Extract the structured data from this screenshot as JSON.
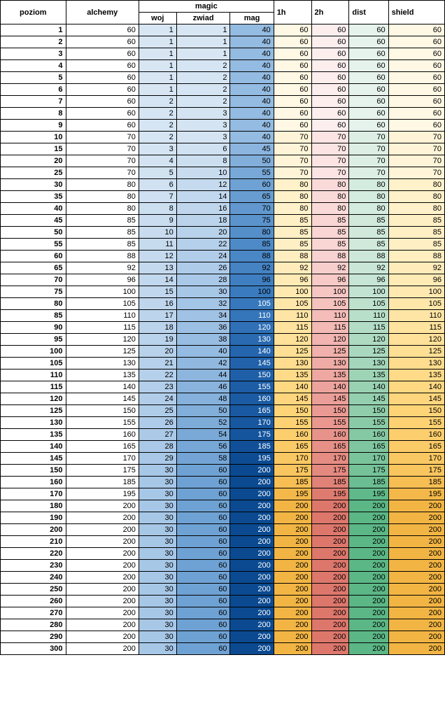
{
  "headers": {
    "poziom": "poziom",
    "alchemy": "alchemy",
    "magic": "magic",
    "woj": "woj",
    "zwiad": "zwiad",
    "mag": "mag",
    "h1": "1h",
    "h2": "2h",
    "dist": "dist",
    "shield": "shield"
  },
  "col_widths": {
    "poziom": 70,
    "alchemy": 70,
    "woj": 70,
    "zwiad": 70,
    "mag": 70,
    "h1": 70,
    "h2": 70,
    "dist": 70,
    "shield": 70
  },
  "magic_color_stops": [
    {
      "v": 1,
      "c": "#d8e6f3"
    },
    {
      "v": 30,
      "c": "#a7c7e7"
    },
    {
      "v": 60,
      "c": "#6fa2d4"
    },
    {
      "v": 100,
      "c": "#3a7bbf"
    },
    {
      "v": 150,
      "c": "#1f5fa8"
    },
    {
      "v": 200,
      "c": "#0b4a91"
    }
  ],
  "h1_color_stops": [
    {
      "v": 60,
      "c": "#fff8e4"
    },
    {
      "v": 100,
      "c": "#ffe9b0"
    },
    {
      "v": 150,
      "c": "#ffd477"
    },
    {
      "v": 200,
      "c": "#f2b544"
    }
  ],
  "h2_color_stops": [
    {
      "v": 60,
      "c": "#fdeeee"
    },
    {
      "v": 100,
      "c": "#f6c6c3"
    },
    {
      "v": 150,
      "c": "#ea9a93"
    },
    {
      "v": 200,
      "c": "#dd776c"
    }
  ],
  "dist_color_stops": [
    {
      "v": 60,
      "c": "#e6f3ec"
    },
    {
      "v": 100,
      "c": "#c2e3d1"
    },
    {
      "v": 150,
      "c": "#8fcdab"
    },
    {
      "v": 200,
      "c": "#5bb786"
    }
  ],
  "shield_color_stops": [
    {
      "v": 60,
      "c": "#fff8e4"
    },
    {
      "v": 100,
      "c": "#ffe9b0"
    },
    {
      "v": 150,
      "c": "#ffd477"
    },
    {
      "v": 200,
      "c": "#f2b544"
    }
  ],
  "rows": [
    {
      "poziom": 1,
      "alchemy": 60,
      "woj": 1,
      "zwiad": 1,
      "mag": 40,
      "h1": 60,
      "h2": 60,
      "dist": 60,
      "shield": 60
    },
    {
      "poziom": 2,
      "alchemy": 60,
      "woj": 1,
      "zwiad": 1,
      "mag": 40,
      "h1": 60,
      "h2": 60,
      "dist": 60,
      "shield": 60
    },
    {
      "poziom": 3,
      "alchemy": 60,
      "woj": 1,
      "zwiad": 1,
      "mag": 40,
      "h1": 60,
      "h2": 60,
      "dist": 60,
      "shield": 60
    },
    {
      "poziom": 4,
      "alchemy": 60,
      "woj": 1,
      "zwiad": 2,
      "mag": 40,
      "h1": 60,
      "h2": 60,
      "dist": 60,
      "shield": 60
    },
    {
      "poziom": 5,
      "alchemy": 60,
      "woj": 1,
      "zwiad": 2,
      "mag": 40,
      "h1": 60,
      "h2": 60,
      "dist": 60,
      "shield": 60
    },
    {
      "poziom": 6,
      "alchemy": 60,
      "woj": 1,
      "zwiad": 2,
      "mag": 40,
      "h1": 60,
      "h2": 60,
      "dist": 60,
      "shield": 60
    },
    {
      "poziom": 7,
      "alchemy": 60,
      "woj": 2,
      "zwiad": 2,
      "mag": 40,
      "h1": 60,
      "h2": 60,
      "dist": 60,
      "shield": 60
    },
    {
      "poziom": 8,
      "alchemy": 60,
      "woj": 2,
      "zwiad": 3,
      "mag": 40,
      "h1": 60,
      "h2": 60,
      "dist": 60,
      "shield": 60
    },
    {
      "poziom": 9,
      "alchemy": 60,
      "woj": 2,
      "zwiad": 3,
      "mag": 40,
      "h1": 60,
      "h2": 60,
      "dist": 60,
      "shield": 60
    },
    {
      "poziom": 10,
      "alchemy": 70,
      "woj": 2,
      "zwiad": 3,
      "mag": 40,
      "h1": 70,
      "h2": 70,
      "dist": 70,
      "shield": 70
    },
    {
      "poziom": 15,
      "alchemy": 70,
      "woj": 3,
      "zwiad": 6,
      "mag": 45,
      "h1": 70,
      "h2": 70,
      "dist": 70,
      "shield": 70
    },
    {
      "poziom": 20,
      "alchemy": 70,
      "woj": 4,
      "zwiad": 8,
      "mag": 50,
      "h1": 70,
      "h2": 70,
      "dist": 70,
      "shield": 70
    },
    {
      "poziom": 25,
      "alchemy": 70,
      "woj": 5,
      "zwiad": 10,
      "mag": 55,
      "h1": 70,
      "h2": 70,
      "dist": 70,
      "shield": 70
    },
    {
      "poziom": 30,
      "alchemy": 80,
      "woj": 6,
      "zwiad": 12,
      "mag": 60,
      "h1": 80,
      "h2": 80,
      "dist": 80,
      "shield": 80
    },
    {
      "poziom": 35,
      "alchemy": 80,
      "woj": 7,
      "zwiad": 14,
      "mag": 65,
      "h1": 80,
      "h2": 80,
      "dist": 80,
      "shield": 80
    },
    {
      "poziom": 40,
      "alchemy": 80,
      "woj": 8,
      "zwiad": 16,
      "mag": 70,
      "h1": 80,
      "h2": 80,
      "dist": 80,
      "shield": 80
    },
    {
      "poziom": 45,
      "alchemy": 85,
      "woj": 9,
      "zwiad": 18,
      "mag": 75,
      "h1": 85,
      "h2": 85,
      "dist": 85,
      "shield": 85
    },
    {
      "poziom": 50,
      "alchemy": 85,
      "woj": 10,
      "zwiad": 20,
      "mag": 80,
      "h1": 85,
      "h2": 85,
      "dist": 85,
      "shield": 85
    },
    {
      "poziom": 55,
      "alchemy": 85,
      "woj": 11,
      "zwiad": 22,
      "mag": 85,
      "h1": 85,
      "h2": 85,
      "dist": 85,
      "shield": 85
    },
    {
      "poziom": 60,
      "alchemy": 88,
      "woj": 12,
      "zwiad": 24,
      "mag": 88,
      "h1": 88,
      "h2": 88,
      "dist": 88,
      "shield": 88
    },
    {
      "poziom": 65,
      "alchemy": 92,
      "woj": 13,
      "zwiad": 26,
      "mag": 92,
      "h1": 92,
      "h2": 92,
      "dist": 92,
      "shield": 92
    },
    {
      "poziom": 70,
      "alchemy": 96,
      "woj": 14,
      "zwiad": 28,
      "mag": 96,
      "h1": 96,
      "h2": 96,
      "dist": 96,
      "shield": 96
    },
    {
      "poziom": 75,
      "alchemy": 100,
      "woj": 15,
      "zwiad": 30,
      "mag": 100,
      "h1": 100,
      "h2": 100,
      "dist": 100,
      "shield": 100
    },
    {
      "poziom": 80,
      "alchemy": 105,
      "woj": 16,
      "zwiad": 32,
      "mag": 105,
      "h1": 105,
      "h2": 105,
      "dist": 105,
      "shield": 105
    },
    {
      "poziom": 85,
      "alchemy": 110,
      "woj": 17,
      "zwiad": 34,
      "mag": 110,
      "h1": 110,
      "h2": 110,
      "dist": 110,
      "shield": 110
    },
    {
      "poziom": 90,
      "alchemy": 115,
      "woj": 18,
      "zwiad": 36,
      "mag": 120,
      "h1": 115,
      "h2": 115,
      "dist": 115,
      "shield": 115
    },
    {
      "poziom": 95,
      "alchemy": 120,
      "woj": 19,
      "zwiad": 38,
      "mag": 130,
      "h1": 120,
      "h2": 120,
      "dist": 120,
      "shield": 120
    },
    {
      "poziom": 100,
      "alchemy": 125,
      "woj": 20,
      "zwiad": 40,
      "mag": 140,
      "h1": 125,
      "h2": 125,
      "dist": 125,
      "shield": 125
    },
    {
      "poziom": 105,
      "alchemy": 130,
      "woj": 21,
      "zwiad": 42,
      "mag": 145,
      "h1": 130,
      "h2": 130,
      "dist": 130,
      "shield": 130
    },
    {
      "poziom": 110,
      "alchemy": 135,
      "woj": 22,
      "zwiad": 44,
      "mag": 150,
      "h1": 135,
      "h2": 135,
      "dist": 135,
      "shield": 135
    },
    {
      "poziom": 115,
      "alchemy": 140,
      "woj": 23,
      "zwiad": 46,
      "mag": 155,
      "h1": 140,
      "h2": 140,
      "dist": 140,
      "shield": 140
    },
    {
      "poziom": 120,
      "alchemy": 145,
      "woj": 24,
      "zwiad": 48,
      "mag": 160,
      "h1": 145,
      "h2": 145,
      "dist": 145,
      "shield": 145
    },
    {
      "poziom": 125,
      "alchemy": 150,
      "woj": 25,
      "zwiad": 50,
      "mag": 165,
      "h1": 150,
      "h2": 150,
      "dist": 150,
      "shield": 150
    },
    {
      "poziom": 130,
      "alchemy": 155,
      "woj": 26,
      "zwiad": 52,
      "mag": 170,
      "h1": 155,
      "h2": 155,
      "dist": 155,
      "shield": 155
    },
    {
      "poziom": 135,
      "alchemy": 160,
      "woj": 27,
      "zwiad": 54,
      "mag": 175,
      "h1": 160,
      "h2": 160,
      "dist": 160,
      "shield": 160
    },
    {
      "poziom": 140,
      "alchemy": 165,
      "woj": 28,
      "zwiad": 56,
      "mag": 185,
      "h1": 165,
      "h2": 165,
      "dist": 165,
      "shield": 165
    },
    {
      "poziom": 145,
      "alchemy": 170,
      "woj": 29,
      "zwiad": 58,
      "mag": 195,
      "h1": 170,
      "h2": 170,
      "dist": 170,
      "shield": 170
    },
    {
      "poziom": 150,
      "alchemy": 175,
      "woj": 30,
      "zwiad": 60,
      "mag": 200,
      "h1": 175,
      "h2": 175,
      "dist": 175,
      "shield": 175
    },
    {
      "poziom": 160,
      "alchemy": 185,
      "woj": 30,
      "zwiad": 60,
      "mag": 200,
      "h1": 185,
      "h2": 185,
      "dist": 185,
      "shield": 185
    },
    {
      "poziom": 170,
      "alchemy": 195,
      "woj": 30,
      "zwiad": 60,
      "mag": 200,
      "h1": 195,
      "h2": 195,
      "dist": 195,
      "shield": 195
    },
    {
      "poziom": 180,
      "alchemy": 200,
      "woj": 30,
      "zwiad": 60,
      "mag": 200,
      "h1": 200,
      "h2": 200,
      "dist": 200,
      "shield": 200
    },
    {
      "poziom": 190,
      "alchemy": 200,
      "woj": 30,
      "zwiad": 60,
      "mag": 200,
      "h1": 200,
      "h2": 200,
      "dist": 200,
      "shield": 200
    },
    {
      "poziom": 200,
      "alchemy": 200,
      "woj": 30,
      "zwiad": 60,
      "mag": 200,
      "h1": 200,
      "h2": 200,
      "dist": 200,
      "shield": 200
    },
    {
      "poziom": 210,
      "alchemy": 200,
      "woj": 30,
      "zwiad": 60,
      "mag": 200,
      "h1": 200,
      "h2": 200,
      "dist": 200,
      "shield": 200
    },
    {
      "poziom": 220,
      "alchemy": 200,
      "woj": 30,
      "zwiad": 60,
      "mag": 200,
      "h1": 200,
      "h2": 200,
      "dist": 200,
      "shield": 200
    },
    {
      "poziom": 230,
      "alchemy": 200,
      "woj": 30,
      "zwiad": 60,
      "mag": 200,
      "h1": 200,
      "h2": 200,
      "dist": 200,
      "shield": 200
    },
    {
      "poziom": 240,
      "alchemy": 200,
      "woj": 30,
      "zwiad": 60,
      "mag": 200,
      "h1": 200,
      "h2": 200,
      "dist": 200,
      "shield": 200
    },
    {
      "poziom": 250,
      "alchemy": 200,
      "woj": 30,
      "zwiad": 60,
      "mag": 200,
      "h1": 200,
      "h2": 200,
      "dist": 200,
      "shield": 200
    },
    {
      "poziom": 260,
      "alchemy": 200,
      "woj": 30,
      "zwiad": 60,
      "mag": 200,
      "h1": 200,
      "h2": 200,
      "dist": 200,
      "shield": 200
    },
    {
      "poziom": 270,
      "alchemy": 200,
      "woj": 30,
      "zwiad": 60,
      "mag": 200,
      "h1": 200,
      "h2": 200,
      "dist": 200,
      "shield": 200
    },
    {
      "poziom": 280,
      "alchemy": 200,
      "woj": 30,
      "zwiad": 60,
      "mag": 200,
      "h1": 200,
      "h2": 200,
      "dist": 200,
      "shield": 200
    },
    {
      "poziom": 290,
      "alchemy": 200,
      "woj": 30,
      "zwiad": 60,
      "mag": 200,
      "h1": 200,
      "h2": 200,
      "dist": 200,
      "shield": 200
    },
    {
      "poziom": 300,
      "alchemy": 200,
      "woj": 30,
      "zwiad": 60,
      "mag": 200,
      "h1": 200,
      "h2": 200,
      "dist": 200,
      "shield": 200
    }
  ]
}
